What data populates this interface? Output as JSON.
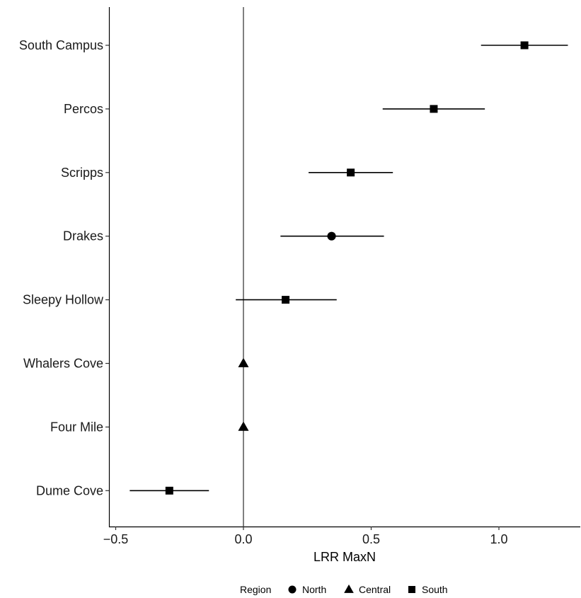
{
  "chart_data": {
    "type": "scatter",
    "subtype": "forest-plot with horizontal error bars",
    "xlabel": "LRR MaxN",
    "ylabel": "",
    "xlim": [
      -0.53,
      1.32
    ],
    "xticks": [
      -0.5,
      0.0,
      0.5,
      1.0
    ],
    "xtick_labels": [
      "−0.5",
      "0.0",
      "0.5",
      "1.0"
    ],
    "reference_line_x": 0.0,
    "grid": false,
    "legend": {
      "title": "Region",
      "placement": "bottom",
      "entries": [
        {
          "label": "North",
          "shape": "circle"
        },
        {
          "label": "Central",
          "shape": "triangle"
        },
        {
          "label": "South",
          "shape": "square"
        }
      ]
    },
    "categories": [
      "South Campus",
      "Percos",
      "Scripps",
      "Drakes",
      "Sleepy Hollow",
      "Whalers Cove",
      "Four Mile",
      "Dume Cove"
    ],
    "points": [
      {
        "site": "South Campus",
        "region": "South",
        "estimate": 1.1,
        "lower": 0.93,
        "upper": 1.27
      },
      {
        "site": "Percos",
        "region": "South",
        "estimate": 0.745,
        "lower": 0.545,
        "upper": 0.945
      },
      {
        "site": "Scripps",
        "region": "South",
        "estimate": 0.42,
        "lower": 0.255,
        "upper": 0.585
      },
      {
        "site": "Drakes",
        "region": "North",
        "estimate": 0.345,
        "lower": 0.145,
        "upper": 0.55
      },
      {
        "site": "Sleepy Hollow",
        "region": "South",
        "estimate": 0.165,
        "lower": -0.03,
        "upper": 0.365
      },
      {
        "site": "Whalers Cove",
        "region": "Central",
        "estimate": 0.0,
        "lower": null,
        "upper": null
      },
      {
        "site": "Four Mile",
        "region": "Central",
        "estimate": 0.0,
        "lower": null,
        "upper": null
      },
      {
        "site": "Dume Cove",
        "region": "South",
        "estimate": -0.29,
        "lower": -0.445,
        "upper": -0.135
      }
    ]
  }
}
